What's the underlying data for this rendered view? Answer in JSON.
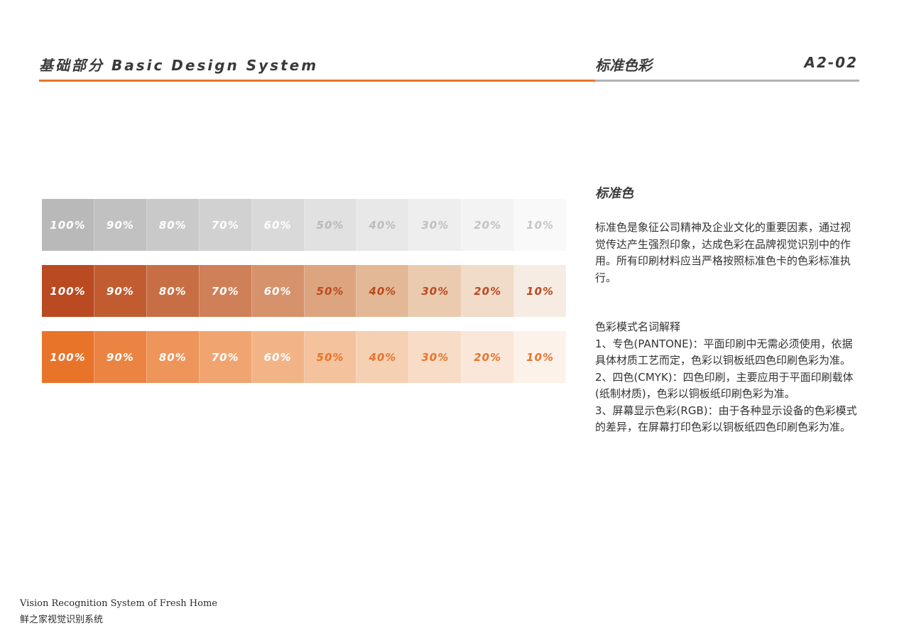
{
  "header": {
    "title": "基础部分 Basic Design System",
    "section": "标准色彩",
    "page_code": "A2-02",
    "accent_color": "#e8742a",
    "rule_gray_color": "#b2b2b2"
  },
  "swatch_rows": [
    {
      "name": "gray",
      "swatches": [
        {
          "label": "100%",
          "bg": "#b9b9b9",
          "fg": "#ffffff"
        },
        {
          "label": "90%",
          "bg": "#c1c1c1",
          "fg": "#ffffff"
        },
        {
          "label": "80%",
          "bg": "#c9c9c9",
          "fg": "#ffffff"
        },
        {
          "label": "70%",
          "bg": "#d1d1d1",
          "fg": "#ffffff"
        },
        {
          "label": "60%",
          "bg": "#d9d9d9",
          "fg": "#ffffff"
        },
        {
          "label": "50%",
          "bg": "#e1e1e1",
          "fg": "#b9b9b9"
        },
        {
          "label": "40%",
          "bg": "#e8e8e8",
          "fg": "#bcbcbc"
        },
        {
          "label": "30%",
          "bg": "#eeeeee",
          "fg": "#bfbfbf"
        },
        {
          "label": "20%",
          "bg": "#f3f3f3",
          "fg": "#c2c2c2"
        },
        {
          "label": "10%",
          "bg": "#f9f9f9",
          "fg": "#c6c6c6"
        }
      ]
    },
    {
      "name": "dark-orange",
      "swatches": [
        {
          "label": "100%",
          "bg": "#b94a21",
          "fg": "#ffffff"
        },
        {
          "label": "90%",
          "bg": "#c15c31",
          "fg": "#ffffff"
        },
        {
          "label": "80%",
          "bg": "#c86e45",
          "fg": "#ffffff"
        },
        {
          "label": "70%",
          "bg": "#cf8058",
          "fg": "#ffffff"
        },
        {
          "label": "60%",
          "bg": "#d6926b",
          "fg": "#ffffff"
        },
        {
          "label": "50%",
          "bg": "#dca580",
          "fg": "#b94a21"
        },
        {
          "label": "40%",
          "bg": "#e3b896",
          "fg": "#b94a21"
        },
        {
          "label": "30%",
          "bg": "#eacbaf",
          "fg": "#b94a21"
        },
        {
          "label": "20%",
          "bg": "#f0dcc8",
          "fg": "#b94a21"
        },
        {
          "label": "10%",
          "bg": "#f6ece3",
          "fg": "#b94a21"
        }
      ]
    },
    {
      "name": "orange",
      "swatches": [
        {
          "label": "100%",
          "bg": "#e8742a",
          "fg": "#ffffff"
        },
        {
          "label": "90%",
          "bg": "#eb8443",
          "fg": "#ffffff"
        },
        {
          "label": "80%",
          "bg": "#ed955b",
          "fg": "#ffffff"
        },
        {
          "label": "70%",
          "bg": "#f0a571",
          "fg": "#ffffff"
        },
        {
          "label": "60%",
          "bg": "#f2b487",
          "fg": "#ffffff"
        },
        {
          "label": "50%",
          "bg": "#f4c29d",
          "fg": "#e8742a"
        },
        {
          "label": "40%",
          "bg": "#f6d0b3",
          "fg": "#e8742a"
        },
        {
          "label": "30%",
          "bg": "#f8dcc7",
          "fg": "#e8742a"
        },
        {
          "label": "20%",
          "bg": "#fae7da",
          "fg": "#e8742a"
        },
        {
          "label": "10%",
          "bg": "#fcf2ea",
          "fg": "#e8742a"
        }
      ]
    }
  ],
  "panel": {
    "title": "标准色",
    "description": "标准色是象征公司精神及企业文化的重要因素，通过视觉传达产生强烈印象，达成色彩在品牌视觉识别中的作用。所有印刷材料应当严格按照标准色卡的色彩标准执行。",
    "terms_heading": "色彩模式名词解释",
    "terms": [
      "1、专色(PANTONE)：平面印刷中无需必须使用，依据具体材质工艺而定，色彩以铜板纸四色印刷色彩为准。",
      "2、四色(CMYK)：四色印刷，主要应用于平面印刷载体(纸制材质)，色彩以铜板纸印刷色彩为准。",
      "3、屏幕显示色彩(RGB)：由于各种显示设备的色彩模式的差异，在屏幕打印色彩以铜板纸四色印刷色彩为准。"
    ]
  },
  "footer": {
    "english": "Vision Recognition System of Fresh Home",
    "chinese": "鲜之家视觉识别系统"
  }
}
